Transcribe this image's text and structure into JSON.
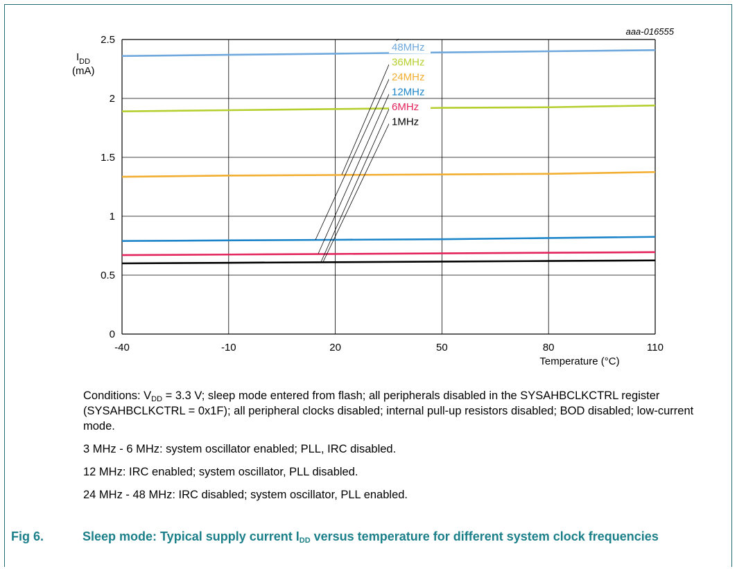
{
  "figure_id": "aaa-016555",
  "chart_data": {
    "type": "line",
    "xlabel": "Temperature (°C)",
    "ylabel_main": "I",
    "ylabel_sub": "DD",
    "ylabel_unit": "(mA)",
    "xlim": [
      -40,
      110
    ],
    "ylim": [
      0,
      2.5
    ],
    "x_ticks": [
      -40,
      -10,
      20,
      50,
      80,
      110
    ],
    "y_ticks": [
      0,
      0.5,
      1,
      1.5,
      2,
      2.5
    ],
    "y_tick_labels": [
      "0",
      "0.5",
      "1",
      "1.5",
      "2",
      "2.5"
    ],
    "grid": true,
    "x": [
      -40,
      -10,
      20,
      50,
      80,
      110
    ],
    "series": [
      {
        "name": "48MHz",
        "color": "#6fa8dc",
        "values": [
          2.36,
          2.37,
          2.38,
          2.39,
          2.4,
          2.41
        ]
      },
      {
        "name": "36MHz",
        "color": "#b5cf2e",
        "values": [
          1.89,
          1.9,
          1.91,
          1.92,
          1.925,
          1.94
        ]
      },
      {
        "name": "24MHz",
        "color": "#f2ae30",
        "values": [
          1.335,
          1.345,
          1.35,
          1.355,
          1.36,
          1.375
        ]
      },
      {
        "name": "12MHz",
        "color": "#1c85c9",
        "values": [
          0.79,
          0.795,
          0.8,
          0.805,
          0.815,
          0.825
        ]
      },
      {
        "name": "6MHz",
        "color": "#e3245c",
        "values": [
          0.67,
          0.675,
          0.68,
          0.685,
          0.69,
          0.695
        ]
      },
      {
        "name": "1MHz",
        "color": "#000000",
        "values": [
          0.6,
          0.605,
          0.61,
          0.615,
          0.62,
          0.625
        ]
      }
    ]
  },
  "notes": {
    "conditions_prefix": "Conditions: V",
    "conditions_sub": "DD",
    "conditions_rest": " = 3.3 V; sleep mode entered from flash; all peripherals disabled in the SYSAHBCLKCTRL register (SYSAHBCLKCTRL = 0x1F); all peripheral clocks disabled; internal pull-up resistors disabled; BOD disabled; low-current mode.",
    "line2": "3 MHz - 6 MHz: system oscillator enabled; PLL, IRC disabled.",
    "line3": "12 MHz: IRC enabled; system oscillator, PLL disabled.",
    "line4": "24 MHz - 48 MHz: IRC disabled; system oscillator, PLL enabled."
  },
  "caption": {
    "label": "Fig 6.",
    "title_prefix": "Sleep mode: Typical supply current I",
    "title_sub": "DD",
    "title_rest": " versus temperature for different system clock frequencies"
  }
}
